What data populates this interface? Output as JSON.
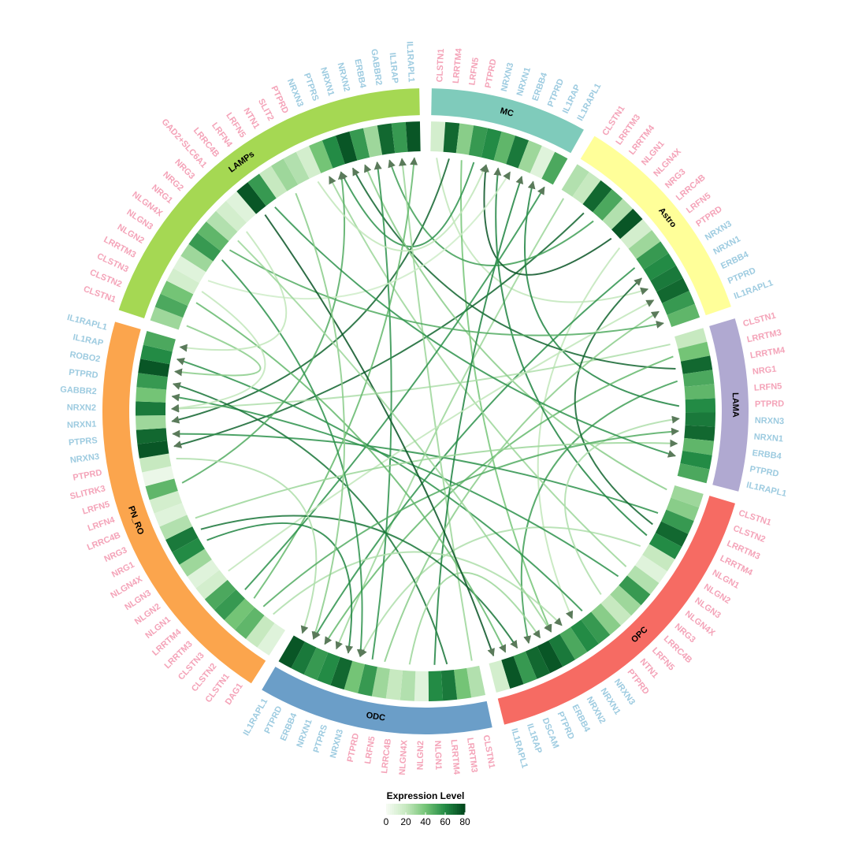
{
  "chart_data": {
    "type": "chord",
    "ligand_color": "#f4a3b8",
    "receptor_color": "#9dcbe0",
    "colors": [
      "#f7fcf5",
      "#c7e9c0",
      "#74c476",
      "#238b45",
      "#00441b"
    ],
    "clim": [
      0,
      80
    ],
    "colorbar_ticks": [
      0,
      20,
      40,
      60,
      80
    ],
    "colorbar_title": "Expression Level",
    "sectors": [
      {
        "name": "MC",
        "color": "#7fcbbb",
        "ligands": [
          "CLSTN1",
          "LRRTM4",
          "LRFN5",
          "PTPRD"
        ],
        "ligand_values": [
          15,
          70,
          35,
          55
        ],
        "receptors": [
          "NRXN3",
          "NRXN1",
          "ERBB4",
          "PTPRD",
          "IL1RAP",
          "IL1RAPL1"
        ],
        "receptor_values": [
          60,
          45,
          65,
          30,
          10,
          50
        ]
      },
      {
        "name": "Astro",
        "color": "#ffff99",
        "ligands": [
          "CLSTN1",
          "LRRTM3",
          "LRRTM4",
          "NLGN1",
          "NLGN4X",
          "NRG3",
          "LRRC4B",
          "LRFN5",
          "PTPRD"
        ],
        "ligand_values": [
          25,
          20,
          70,
          50,
          25,
          75,
          15,
          30,
          55
        ],
        "receptors": [
          "NRXN3",
          "NRXN1",
          "ERBB4",
          "PTPRD",
          "IL1RAPL1"
        ],
        "receptor_values": [
          60,
          65,
          70,
          55,
          45
        ]
      },
      {
        "name": "LAMA",
        "color": "#b0a9d1",
        "ligands": [
          "CLSTN1",
          "LRRTM3",
          "LRRTM4",
          "NRG1",
          "LRFN5",
          "PTPRD"
        ],
        "ligand_values": [
          20,
          40,
          70,
          50,
          45,
          60
        ],
        "receptors": [
          "NRXN3",
          "NRXN1",
          "ERBB4",
          "PTPRD",
          "IL1RAPL1"
        ],
        "receptor_values": [
          65,
          70,
          45,
          60,
          50
        ]
      },
      {
        "name": "OPC",
        "color": "#f66b63",
        "ligands": [
          "CLSTN1",
          "CLSTN2",
          "LRRTM3",
          "LRRTM4",
          "NLGN1",
          "NLGN2",
          "NLGN3",
          "NLGN4X",
          "NRG3",
          "LRRC4B",
          "LRFN5",
          "NTN1",
          "PTPRD"
        ],
        "ligand_values": [
          30,
          35,
          55,
          70,
          60,
          20,
          10,
          25,
          55,
          30,
          20,
          35,
          55
        ],
        "receptors": [
          "NRXN3",
          "NRXN1",
          "NRXN2",
          "ERBB4",
          "PTPRD",
          "DSCAM",
          "IL1RAP",
          "IL1RAPL1"
        ],
        "receptor_values": [
          60,
          50,
          65,
          75,
          70,
          55,
          75,
          15
        ]
      },
      {
        "name": "ODC",
        "color": "#6b9ec8",
        "ligands": [
          "CLSTN1",
          "LRRTM3",
          "LRRTM4",
          "NLGN1",
          "NLGN2",
          "NLGN4X",
          "LRRC4B",
          "LRFN5",
          "PTPRD"
        ],
        "ligand_values": [
          25,
          40,
          65,
          60,
          10,
          25,
          20,
          30,
          55
        ],
        "receptors": [
          "NRXN3",
          "PTPRS",
          "NRXN1",
          "ERBB4",
          "PTPRD",
          "IL1RAPL1"
        ],
        "receptor_values": [
          40,
          70,
          60,
          55,
          65,
          75
        ]
      },
      {
        "name": "PN_RO",
        "color": "#fba54d",
        "ligands": [
          "DAG1",
          "CLSTN1",
          "CLSTN2",
          "CLSTN3",
          "LRRTM3",
          "LRRTM4",
          "NLGN1",
          "NLGN2",
          "NLGN3",
          "NLGN4X",
          "NRG1",
          "NRG3",
          "LRRC4B",
          "LRFN4",
          "LRFN5",
          "SLITRK3",
          "PTPRD"
        ],
        "ligand_values": [
          10,
          20,
          45,
          40,
          55,
          50,
          15,
          10,
          30,
          60,
          65,
          25,
          10,
          15,
          45,
          5,
          20
        ],
        "receptors": [
          "NRXN3",
          "PTPRS",
          "NRXN1",
          "NRXN2",
          "GABBR2",
          "PTPRD",
          "ROBO2",
          "IL1RAP",
          "IL1RAPL1"
        ],
        "receptor_values": [
          75,
          70,
          30,
          65,
          40,
          55,
          75,
          60,
          50
        ]
      },
      {
        "name": "LAMPs",
        "color": "#a5d853",
        "ligands": [
          "CLSTN1",
          "CLSTN2",
          "CLSTN3",
          "LRRTM3",
          "NLGN2",
          "NLGN3",
          "NLGN4X",
          "NRG1",
          "NRG2",
          "NRG3",
          "GAD2+SLC6A1",
          "LRRC4B",
          "LRFN4",
          "LRFN5",
          "NTN1",
          "SLIT2",
          "PTPRD"
        ],
        "ligand_values": [
          30,
          50,
          40,
          15,
          10,
          30,
          55,
          45,
          25,
          15,
          10,
          75,
          55,
          20,
          30,
          25,
          15
        ],
        "receptors": [
          "NRXN3",
          "PTPRS",
          "NRXN1",
          "NRXN2",
          "ERBB4",
          "GABBR2",
          "IL1RAP",
          "IL1RAPL1"
        ],
        "receptor_values": [
          40,
          60,
          75,
          55,
          30,
          70,
          55,
          75
        ]
      }
    ],
    "links": [
      [
        0,
        0,
        1,
        1
      ],
      [
        0,
        1,
        5,
        2
      ],
      [
        0,
        2,
        3,
        2
      ],
      [
        0,
        3,
        6,
        1
      ],
      [
        1,
        0,
        4,
        2
      ],
      [
        1,
        2,
        5,
        0
      ],
      [
        1,
        3,
        6,
        5
      ],
      [
        1,
        5,
        0,
        0
      ],
      [
        1,
        6,
        3,
        0
      ],
      [
        1,
        8,
        4,
        4
      ],
      [
        2,
        0,
        5,
        3
      ],
      [
        2,
        2,
        6,
        2
      ],
      [
        2,
        3,
        3,
        4
      ],
      [
        2,
        5,
        0,
        4
      ],
      [
        2,
        1,
        4,
        3
      ],
      [
        3,
        0,
        6,
        3
      ],
      [
        3,
        2,
        5,
        1
      ],
      [
        3,
        3,
        1,
        0
      ],
      [
        3,
        4,
        0,
        1
      ],
      [
        3,
        5,
        4,
        0
      ],
      [
        3,
        7,
        6,
        0
      ],
      [
        3,
        8,
        5,
        4
      ],
      [
        3,
        10,
        2,
        0
      ],
      [
        3,
        12,
        5,
        7
      ],
      [
        4,
        0,
        6,
        6
      ],
      [
        4,
        2,
        5,
        5
      ],
      [
        4,
        3,
        0,
        3
      ],
      [
        4,
        5,
        3,
        3
      ],
      [
        4,
        7,
        1,
        3
      ],
      [
        4,
        8,
        6,
        4
      ],
      [
        5,
        1,
        3,
        1
      ],
      [
        5,
        3,
        6,
        7
      ],
      [
        5,
        4,
        0,
        5
      ],
      [
        5,
        6,
        1,
        2
      ],
      [
        5,
        9,
        4,
        1
      ],
      [
        5,
        10,
        3,
        5
      ],
      [
        5,
        11,
        2,
        2
      ],
      [
        5,
        14,
        6,
        1
      ],
      [
        5,
        16,
        4,
        5
      ],
      [
        5,
        2,
        2,
        1
      ],
      [
        6,
        0,
        5,
        6
      ],
      [
        6,
        2,
        3,
        6
      ],
      [
        6,
        4,
        0,
        2
      ],
      [
        6,
        6,
        4,
        0
      ],
      [
        6,
        7,
        1,
        4
      ],
      [
        6,
        9,
        5,
        8
      ],
      [
        6,
        11,
        3,
        7
      ],
      [
        6,
        12,
        2,
        3
      ],
      [
        6,
        14,
        4,
        4
      ],
      [
        6,
        16,
        0,
        0
      ],
      [
        6,
        3,
        5,
        3
      ],
      [
        6,
        8,
        3,
        2
      ]
    ]
  }
}
